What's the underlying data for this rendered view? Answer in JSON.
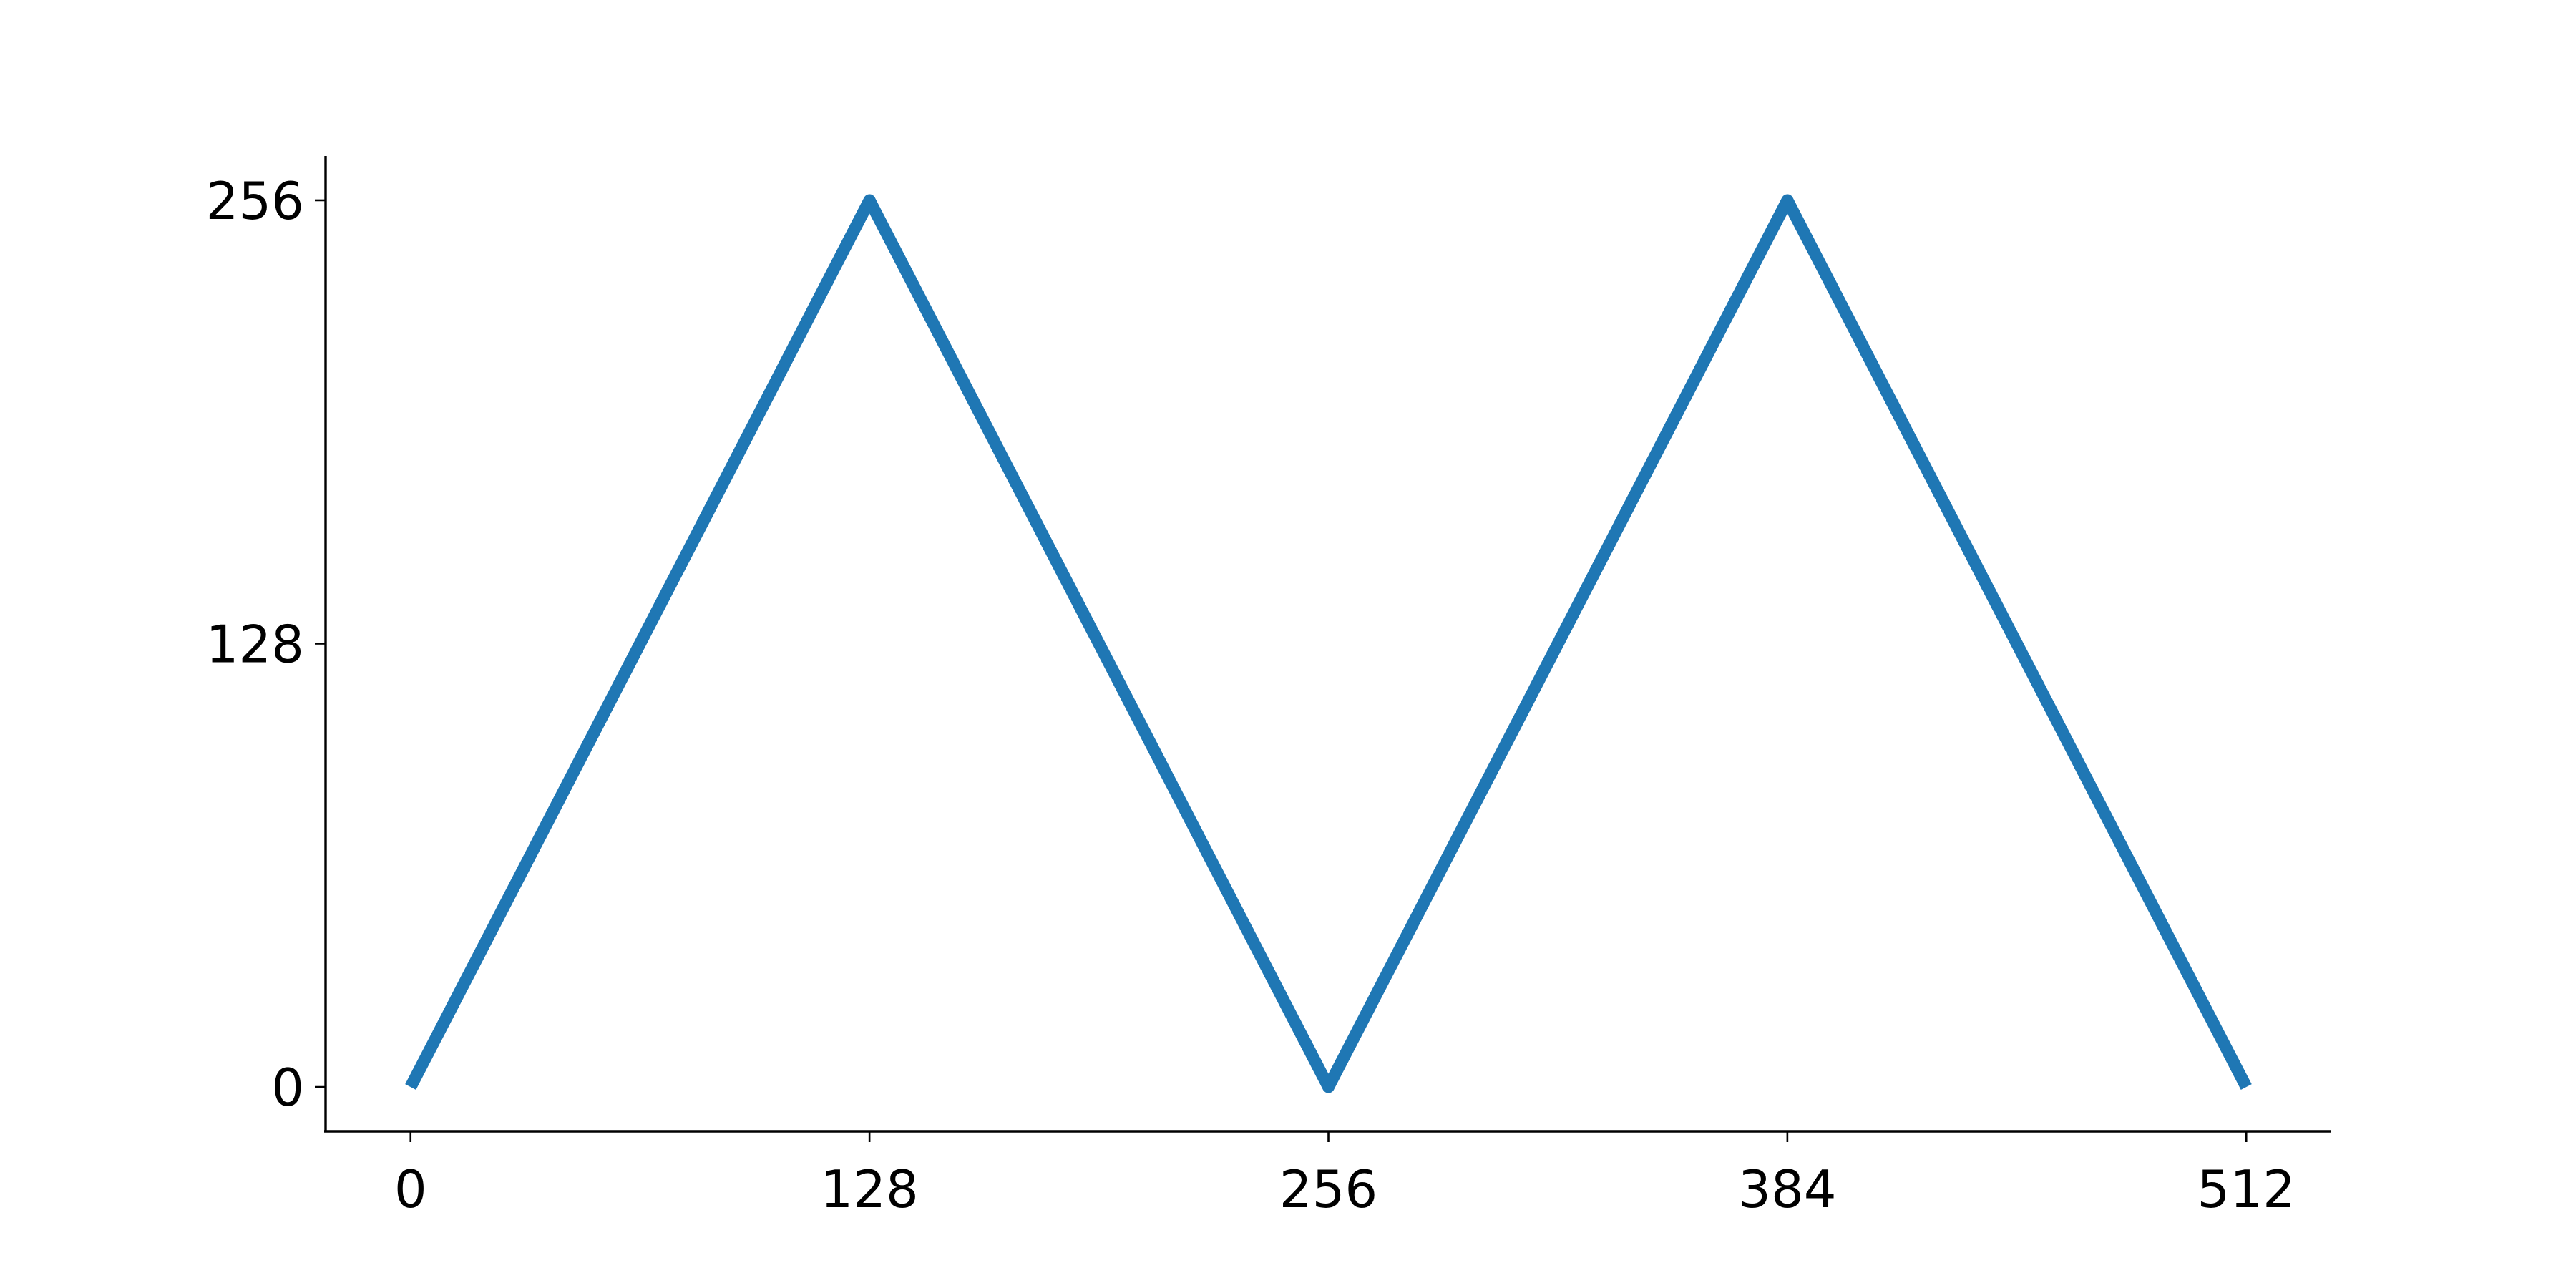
{
  "chart_data": {
    "type": "line",
    "title": "",
    "xlabel": "",
    "ylabel": "",
    "xlim": [
      -23.7,
      535.7
    ],
    "ylim": [
      -12.8,
      268.8
    ],
    "grid": false,
    "legend": false,
    "x_ticks": [
      0,
      128,
      256,
      384,
      512
    ],
    "y_ticks": [
      0,
      128,
      256
    ],
    "series": [
      {
        "color": "#1f77b4",
        "x": [
          0,
          128,
          256,
          384,
          512
        ],
        "y": [
          0,
          256,
          0,
          256,
          0
        ]
      }
    ]
  }
}
